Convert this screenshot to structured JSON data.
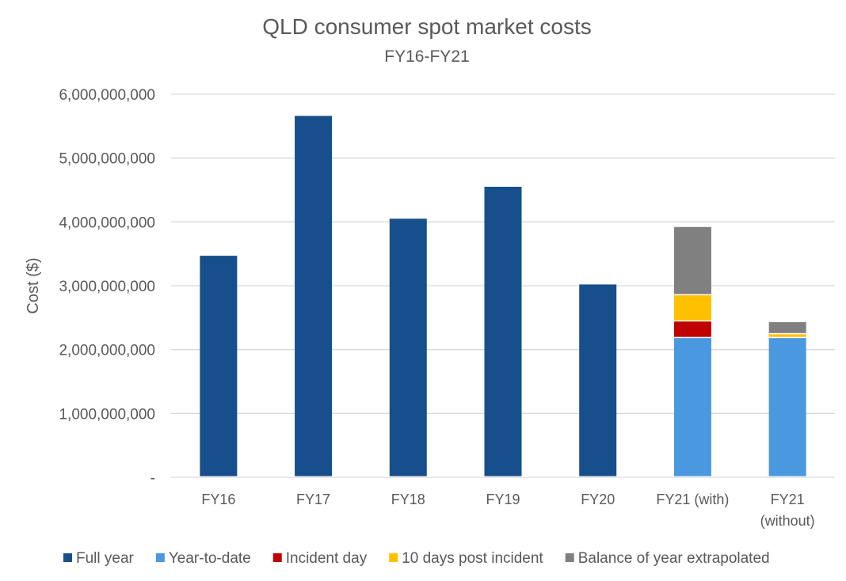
{
  "chart_data": {
    "type": "bar",
    "stacked": true,
    "title": "QLD consumer spot market costs",
    "subtitle": "FY16-FY21",
    "xlabel": "",
    "ylabel": "Cost ($)",
    "ylim": [
      0,
      6000000000
    ],
    "yticks": [
      0,
      1000000000,
      2000000000,
      3000000000,
      4000000000,
      5000000000,
      6000000000
    ],
    "ytick_labels": [
      "-",
      "1,000,000,000",
      "2,000,000,000",
      "3,000,000,000",
      "4,000,000,000",
      "5,000,000,000",
      "6,000,000,000"
    ],
    "grid": true,
    "legend_position": "bottom",
    "categories": [
      "FY16",
      "FY17",
      "FY18",
      "FY19",
      "FY20",
      "FY21 (with)",
      "FY21 (without)"
    ],
    "series": [
      {
        "name": "Full year",
        "color": "#164F8C",
        "values": [
          3470000000,
          5660000000,
          4050000000,
          4550000000,
          3020000000,
          0,
          0
        ]
      },
      {
        "name": "Year-to-date",
        "color": "#4A98E0",
        "values": [
          0,
          0,
          0,
          0,
          0,
          2180000000,
          2180000000
        ]
      },
      {
        "name": "Incident day",
        "color": "#C00000",
        "values": [
          0,
          0,
          0,
          0,
          0,
          260000000,
          0
        ]
      },
      {
        "name": "10 days post incident",
        "color": "#FFC000",
        "values": [
          0,
          0,
          0,
          0,
          0,
          410000000,
          60000000
        ]
      },
      {
        "name": "Balance of year extrapolated",
        "color": "#808080",
        "values": [
          0,
          0,
          0,
          0,
          0,
          1070000000,
          190000000
        ]
      }
    ]
  }
}
